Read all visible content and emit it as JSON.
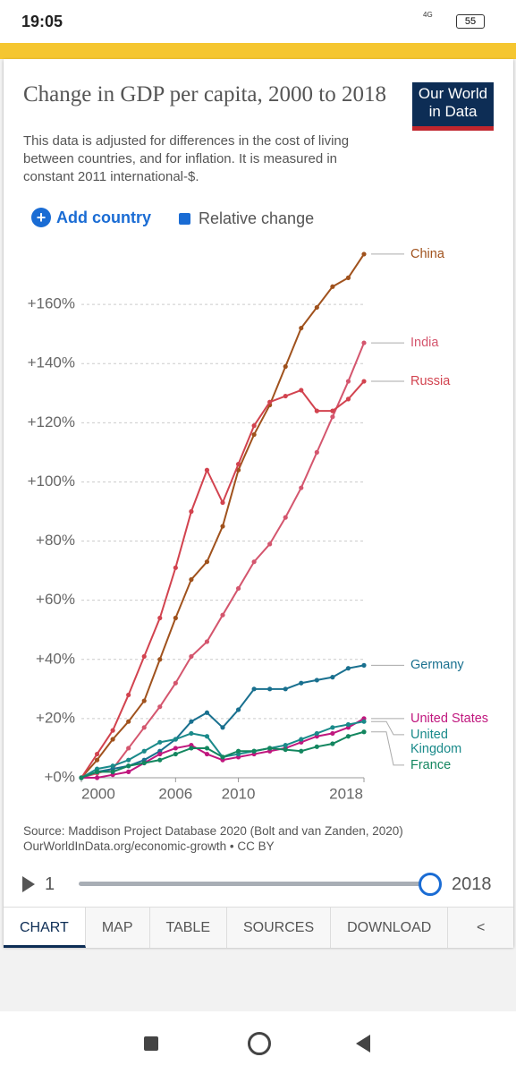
{
  "status_bar": {
    "time": "19:05",
    "network": "4G",
    "battery": "55"
  },
  "header": {
    "title": "Change in GDP per capita, 2000 to 2018",
    "subtitle": "This data is adjusted for differences in the cost of living between countries, and for inflation. It is measured in constant 2011 international-$.",
    "logo": "Our World in Data"
  },
  "controls": {
    "add_country": "Add country",
    "relative_change": "Relative change"
  },
  "chart_data": {
    "type": "line",
    "x": [
      2000,
      2001,
      2002,
      2003,
      2004,
      2005,
      2006,
      2007,
      2008,
      2009,
      2010,
      2011,
      2012,
      2013,
      2014,
      2015,
      2016,
      2017,
      2018
    ],
    "xlim": [
      2000,
      2018
    ],
    "xticks": [
      2000,
      2006,
      2010,
      2018
    ],
    "ylim": [
      0,
      180
    ],
    "yticks": [
      {
        "value": 0,
        "label": "+0%"
      },
      {
        "value": 20,
        "label": "+20%"
      },
      {
        "value": 40,
        "label": "+40%"
      },
      {
        "value": 60,
        "label": "+60%"
      },
      {
        "value": 80,
        "label": "+80%"
      },
      {
        "value": 100,
        "label": "+100%"
      },
      {
        "value": 120,
        "label": "+120%"
      },
      {
        "value": 140,
        "label": "+140%"
      },
      {
        "value": 160,
        "label": "+160%"
      }
    ],
    "grid": true,
    "series": [
      {
        "name": "China",
        "color": "#a0521d",
        "values": [
          0,
          6,
          13,
          19,
          26,
          40,
          54,
          67,
          73,
          85,
          104,
          116,
          126,
          139,
          152,
          159,
          166,
          169,
          177
        ]
      },
      {
        "name": "India",
        "color": "#d4566e",
        "values": [
          0,
          1.5,
          3,
          10,
          17,
          24,
          32,
          41,
          46,
          55,
          64,
          73,
          79,
          88,
          98,
          110,
          122,
          134,
          147
        ]
      },
      {
        "name": "Russia",
        "color": "#d2434f",
        "values": [
          0,
          8,
          16,
          28,
          41,
          54,
          71,
          90,
          104,
          93,
          106,
          119,
          127,
          129,
          131,
          124,
          124,
          128,
          134
        ]
      },
      {
        "name": "Germany",
        "color": "#19708f",
        "values": [
          0,
          2,
          3,
          4,
          6,
          9,
          13,
          19,
          22,
          17,
          23,
          30,
          30,
          30,
          32,
          33,
          34,
          37,
          38
        ]
      },
      {
        "name": "United States",
        "color": "#c0177e",
        "values": [
          0,
          0,
          1,
          2,
          5,
          8,
          10,
          11,
          8,
          6,
          7,
          8,
          9,
          10,
          12,
          14,
          15,
          17,
          20
        ]
      },
      {
        "name": "United Kingdom",
        "color": "#1a8a8a",
        "values": [
          0,
          3,
          4,
          6,
          9,
          12,
          13,
          15,
          14,
          7,
          8,
          9,
          10,
          11,
          13,
          15,
          17,
          18,
          19
        ]
      },
      {
        "name": "France",
        "color": "#13865f",
        "values": [
          0,
          2,
          2,
          4,
          5,
          6,
          8,
          10,
          10,
          7,
          9,
          9,
          10,
          9.5,
          9,
          10.5,
          11.5,
          14,
          15.5
        ]
      }
    ]
  },
  "source": {
    "line1": "Source: Maddison Project Database 2020 (Bolt and van Zanden, 2020)",
    "line2": "OurWorldInData.org/economic-growth • CC BY"
  },
  "timeline": {
    "start": "1",
    "end": "2018"
  },
  "tabs": [
    "CHART",
    "MAP",
    "TABLE",
    "SOURCES",
    "DOWNLOAD"
  ]
}
